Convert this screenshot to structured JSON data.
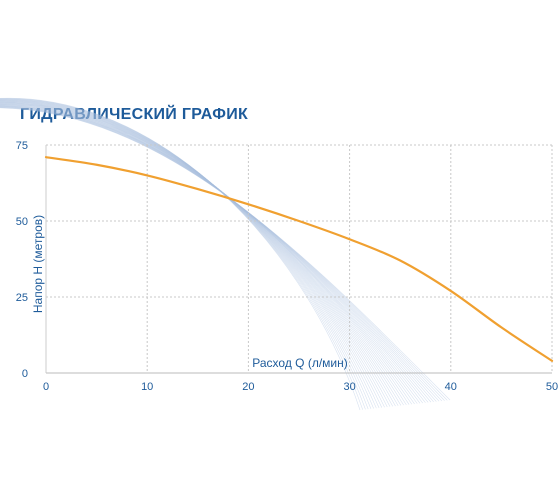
{
  "chart_data": {
    "type": "line",
    "title": "ГИДРАВЛИЧЕСКИЙ ГРАФИК",
    "xlabel": "Расход Q (л/мин)",
    "ylabel": "Напор H (метров)",
    "xlim": [
      0,
      50
    ],
    "ylim": [
      0,
      75
    ],
    "xticks": [
      "0",
      "10",
      "20",
      "30",
      "40",
      "50"
    ],
    "yticks": [
      "0",
      "25",
      "50",
      "75"
    ],
    "grid": true,
    "series": [
      {
        "x": [
          0,
          5,
          10,
          15,
          20,
          25,
          30,
          35,
          40,
          45,
          50
        ],
        "y": [
          71,
          68.5,
          65,
          60.5,
          55.5,
          50,
          44,
          37,
          27,
          15,
          4
        ]
      }
    ],
    "colors": {
      "curve": "#f0a030",
      "axis_text": "#1e5b9a",
      "grid": "#c8c8c8",
      "watermark": "#a9bfdd"
    }
  }
}
